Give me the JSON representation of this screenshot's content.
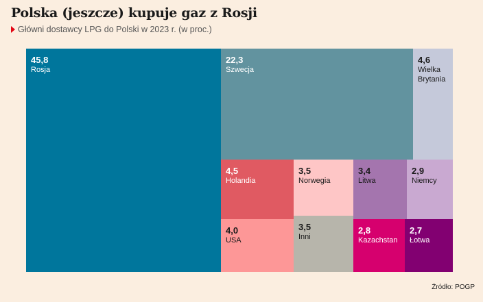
{
  "header": {
    "title": "Polska (jeszcze) kupuje gaz z Rosji",
    "subtitle": "Główni dostawcy LPG do Polski w 2023 r. (w proc.)"
  },
  "footer": {
    "source": "Źródło: POGP"
  },
  "chart_data": {
    "type": "treemap",
    "title": "Polska (jeszcze) kupuje gaz z Rosji",
    "subtitle": "Główni dostawcy LPG do Polski w 2023 r. (w proc.)",
    "items": [
      {
        "label": "Rosja",
        "value_text": "45,8",
        "value": 45.8,
        "color": "#00769c"
      },
      {
        "label": "Szwecja",
        "value_text": "22,3",
        "value": 22.3,
        "color": "#62939f"
      },
      {
        "label": "Wielka Brytania",
        "value_text": "4,6",
        "value": 4.6,
        "color": "#c5c9da"
      },
      {
        "label": "Holandia",
        "value_text": "4,5",
        "value": 4.5,
        "color": "#e05a62"
      },
      {
        "label": "Norwegia",
        "value_text": "3,5",
        "value": 3.5,
        "color": "#fec6c6"
      },
      {
        "label": "Litwa",
        "value_text": "3,4",
        "value": 3.4,
        "color": "#a475ae"
      },
      {
        "label": "Niemcy",
        "value_text": "2,9",
        "value": 2.9,
        "color": "#c9a9d1"
      },
      {
        "label": "USA",
        "value_text": "4,0",
        "value": 4.0,
        "color": "#fd9797"
      },
      {
        "label": "Inni",
        "value_text": "3,5",
        "value": 3.5,
        "color": "#b7b5ab"
      },
      {
        "label": "Kazachstan",
        "value_text": "2,8",
        "value": 2.8,
        "color": "#d6006e"
      },
      {
        "label": "Łotwa",
        "value_text": "2,7",
        "value": 2.7,
        "color": "#820071"
      }
    ]
  }
}
